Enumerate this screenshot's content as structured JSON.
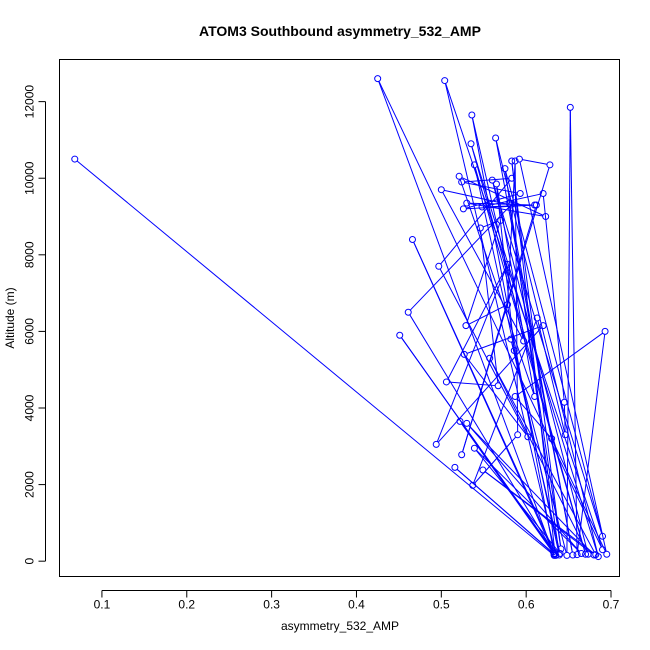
{
  "chart_data": {
    "type": "line",
    "title": "ATOM3 Southbound asymmetry_532_AMP",
    "xlabel": "asymmetry_532_AMP",
    "ylabel": "Altitude (m)",
    "xlim": [
      0.05,
      0.71
    ],
    "ylim": [
      -400,
      13100
    ],
    "xticks": [
      0.1,
      0.2,
      0.3,
      0.4,
      0.5,
      0.6,
      0.7
    ],
    "xtick_labels": [
      "0.1",
      "0.2",
      "0.3",
      "0.4",
      "0.5",
      "0.6",
      "0.7"
    ],
    "yticks": [
      0,
      2000,
      4000,
      6000,
      8000,
      10000,
      12000
    ],
    "ytick_labels": [
      "0",
      "2000",
      "4000",
      "6000",
      "8000",
      "10000",
      "12000"
    ],
    "grid": false,
    "legend": "none",
    "markers": "open-circle",
    "color": "#0000ff",
    "series": [
      {
        "x": [
          0.068,
          0.633,
          0.425,
          0.69,
          0.504,
          0.635,
          0.516,
          0.633,
          0.466,
          0.634,
          0.451,
          0.632,
          0.461,
          0.582,
          0.5,
          0.597,
          0.536,
          0.633,
          0.522,
          0.634,
          0.583,
          0.641,
          0.58,
          0.655,
          0.564,
          0.685,
          0.535,
          0.67,
          0.539,
          0.639,
          0.575,
          0.69,
          0.56,
          0.673,
          0.557,
          0.682,
          0.549,
          0.68,
          0.53,
          0.665,
          0.539,
          0.64,
          0.582,
          0.648,
          0.652,
          0.66,
          0.693,
          0.587,
          0.63,
          0.695,
          0.592,
          0.628,
          0.524,
          0.612,
          0.548,
          0.62,
          0.645,
          0.646,
          0.613,
          0.537,
          0.59,
          0.587,
          0.578,
          0.529,
          0.57,
          0.546,
          0.567,
          0.506,
          0.578,
          0.494,
          0.62,
          0.527,
          0.602,
          0.497,
          0.583,
          0.524,
          0.593,
          0.526,
          0.61,
          0.53,
          0.623,
          0.521,
          0.61,
          0.565,
          0.586
        ],
        "y": [
          10500,
          150,
          12600,
          300,
          12550,
          150,
          2450,
          180,
          8400,
          200,
          5900,
          250,
          6500,
          9300,
          9700,
          5750,
          11650,
          180,
          3650,
          200,
          10450,
          320,
          9350,
          160,
          11050,
          120,
          10900,
          180,
          10350,
          160,
          10250,
          650,
          9950,
          180,
          5300,
          170,
          2380,
          160,
          3600,
          200,
          2950,
          200,
          5800,
          150,
          11850,
          170,
          6000,
          4300,
          3200,
          180,
          10500,
          10350,
          2780,
          9300,
          9250,
          9600,
          4150,
          3300,
          6350,
          1980,
          3300,
          10450,
          6700,
          6150,
          8900,
          8700,
          4580,
          4680,
          7750,
          3050,
          6150,
          5400,
          3250,
          7700,
          10000,
          9900,
          9600,
          9200,
          9300,
          9350,
          9000,
          10050,
          4300,
          9850,
          5500
        ]
      }
    ]
  }
}
